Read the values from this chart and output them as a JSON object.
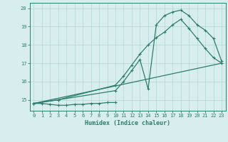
{
  "line1_x": [
    0,
    1,
    2,
    3,
    4,
    5,
    6,
    7,
    8,
    9,
    10
  ],
  "line1_y": [
    14.8,
    14.8,
    14.75,
    14.7,
    14.7,
    14.75,
    14.75,
    14.8,
    14.8,
    14.85,
    14.85
  ],
  "line2_x": [
    0,
    3,
    10,
    11,
    12,
    13,
    14,
    15,
    16,
    17,
    18,
    19,
    20,
    21,
    22,
    23
  ],
  "line2_y": [
    14.8,
    15.0,
    15.5,
    16.0,
    16.6,
    17.2,
    15.6,
    19.1,
    19.6,
    19.8,
    19.9,
    19.6,
    19.1,
    18.8,
    18.35,
    17.1
  ],
  "line3_x": [
    0,
    3,
    10,
    11,
    12,
    13,
    14,
    15,
    16,
    17,
    18,
    19,
    20,
    21,
    22,
    23
  ],
  "line3_y": [
    14.8,
    15.0,
    15.8,
    16.3,
    16.9,
    17.5,
    18.0,
    18.4,
    18.7,
    19.1,
    19.4,
    18.9,
    18.35,
    17.8,
    17.3,
    17.0
  ],
  "line4_x": [
    0,
    23
  ],
  "line4_y": [
    14.8,
    17.0
  ],
  "line_color": "#2d7d6e",
  "bg_color": "#d8eeee",
  "grid_color": "#b5d5d5",
  "xlabel": "Humidex (Indice chaleur)",
  "xlim": [
    -0.5,
    23.5
  ],
  "ylim": [
    14.4,
    20.3
  ],
  "yticks": [
    15,
    16,
    17,
    18,
    19,
    20
  ],
  "xticks": [
    0,
    1,
    2,
    3,
    4,
    5,
    6,
    7,
    8,
    9,
    10,
    11,
    12,
    13,
    14,
    15,
    16,
    17,
    18,
    19,
    20,
    21,
    22,
    23
  ]
}
